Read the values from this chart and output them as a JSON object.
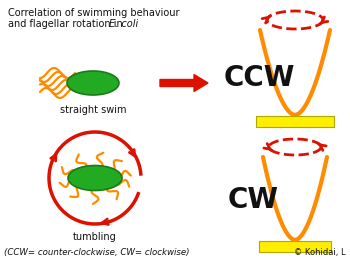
{
  "title_line1": "Correlation of swimming behaviour",
  "title_line2": "and flagellar rotation in ",
  "title_ecoli": "E. coli",
  "label_straight": "straight swim",
  "label_tumbling": "tumbling",
  "label_ccw": "CCW",
  "label_cw": "CW",
  "label_bottom": "(CCW= counter-clockwise, CW= clockwise)",
  "label_copyright": "© Kohidai, L",
  "color_orange": "#FF8C00",
  "color_red": "#DD1100",
  "color_green": "#22AA22",
  "color_yellow": "#FFEE00",
  "color_black": "#111111",
  "color_white": "#FFFFFF"
}
